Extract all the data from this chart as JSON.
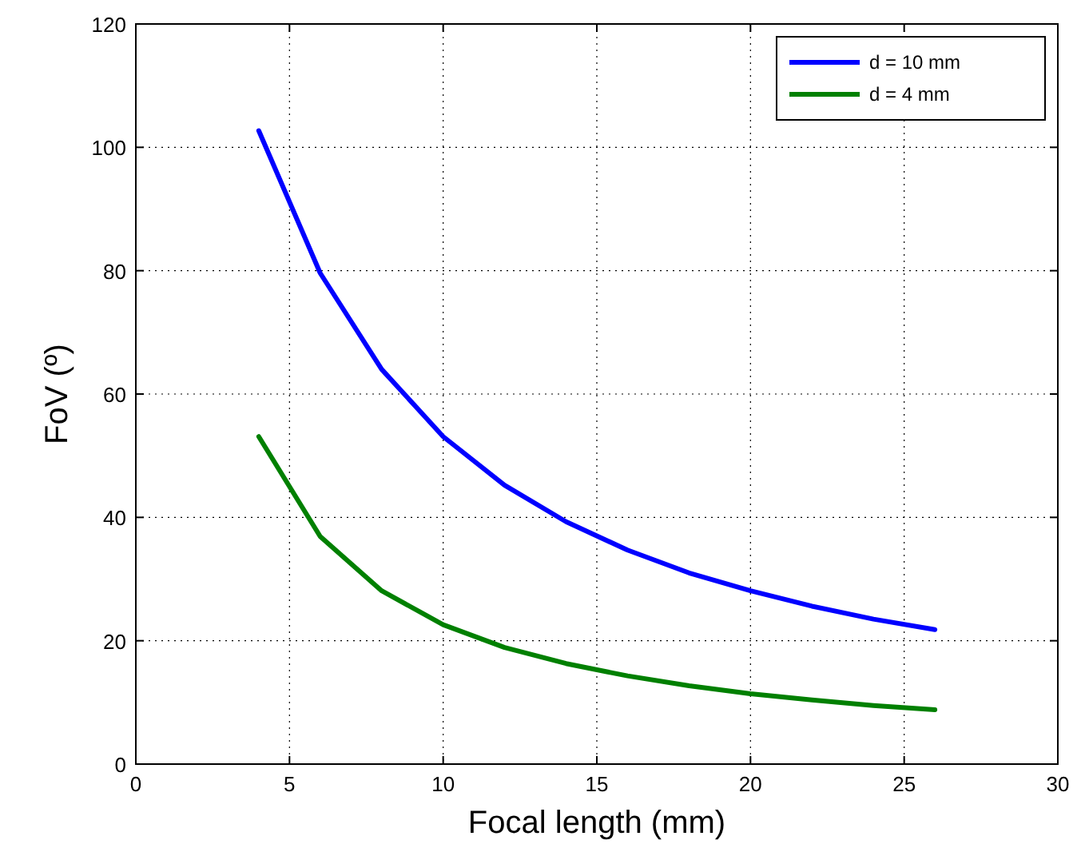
{
  "chart_data": {
    "type": "line",
    "xlabel": "Focal length (mm)",
    "ylabel": "FoV (º)",
    "x": [
      4,
      6,
      8,
      10,
      12,
      14,
      16,
      18,
      20,
      22,
      24,
      26
    ],
    "series": [
      {
        "name": "d = 10 mm",
        "color": "#0000ff",
        "values": [
          102.7,
          79.6,
          64.0,
          53.1,
          45.2,
          39.3,
          34.7,
          31.0,
          28.1,
          25.6,
          23.5,
          21.8
        ]
      },
      {
        "name": "d = 4 mm",
        "color": "#008000",
        "values": [
          53.1,
          36.9,
          28.1,
          22.6,
          18.9,
          16.3,
          14.3,
          12.7,
          11.4,
          10.4,
          9.5,
          8.8
        ]
      }
    ],
    "xlim": [
      0,
      30
    ],
    "xticks": [
      0,
      5,
      10,
      15,
      20,
      25,
      30
    ],
    "ylim": [
      0,
      120
    ],
    "yticks": [
      0,
      20,
      40,
      60,
      80,
      100,
      120
    ],
    "grid": true,
    "legend": "top right",
    "line_style": "solid"
  }
}
